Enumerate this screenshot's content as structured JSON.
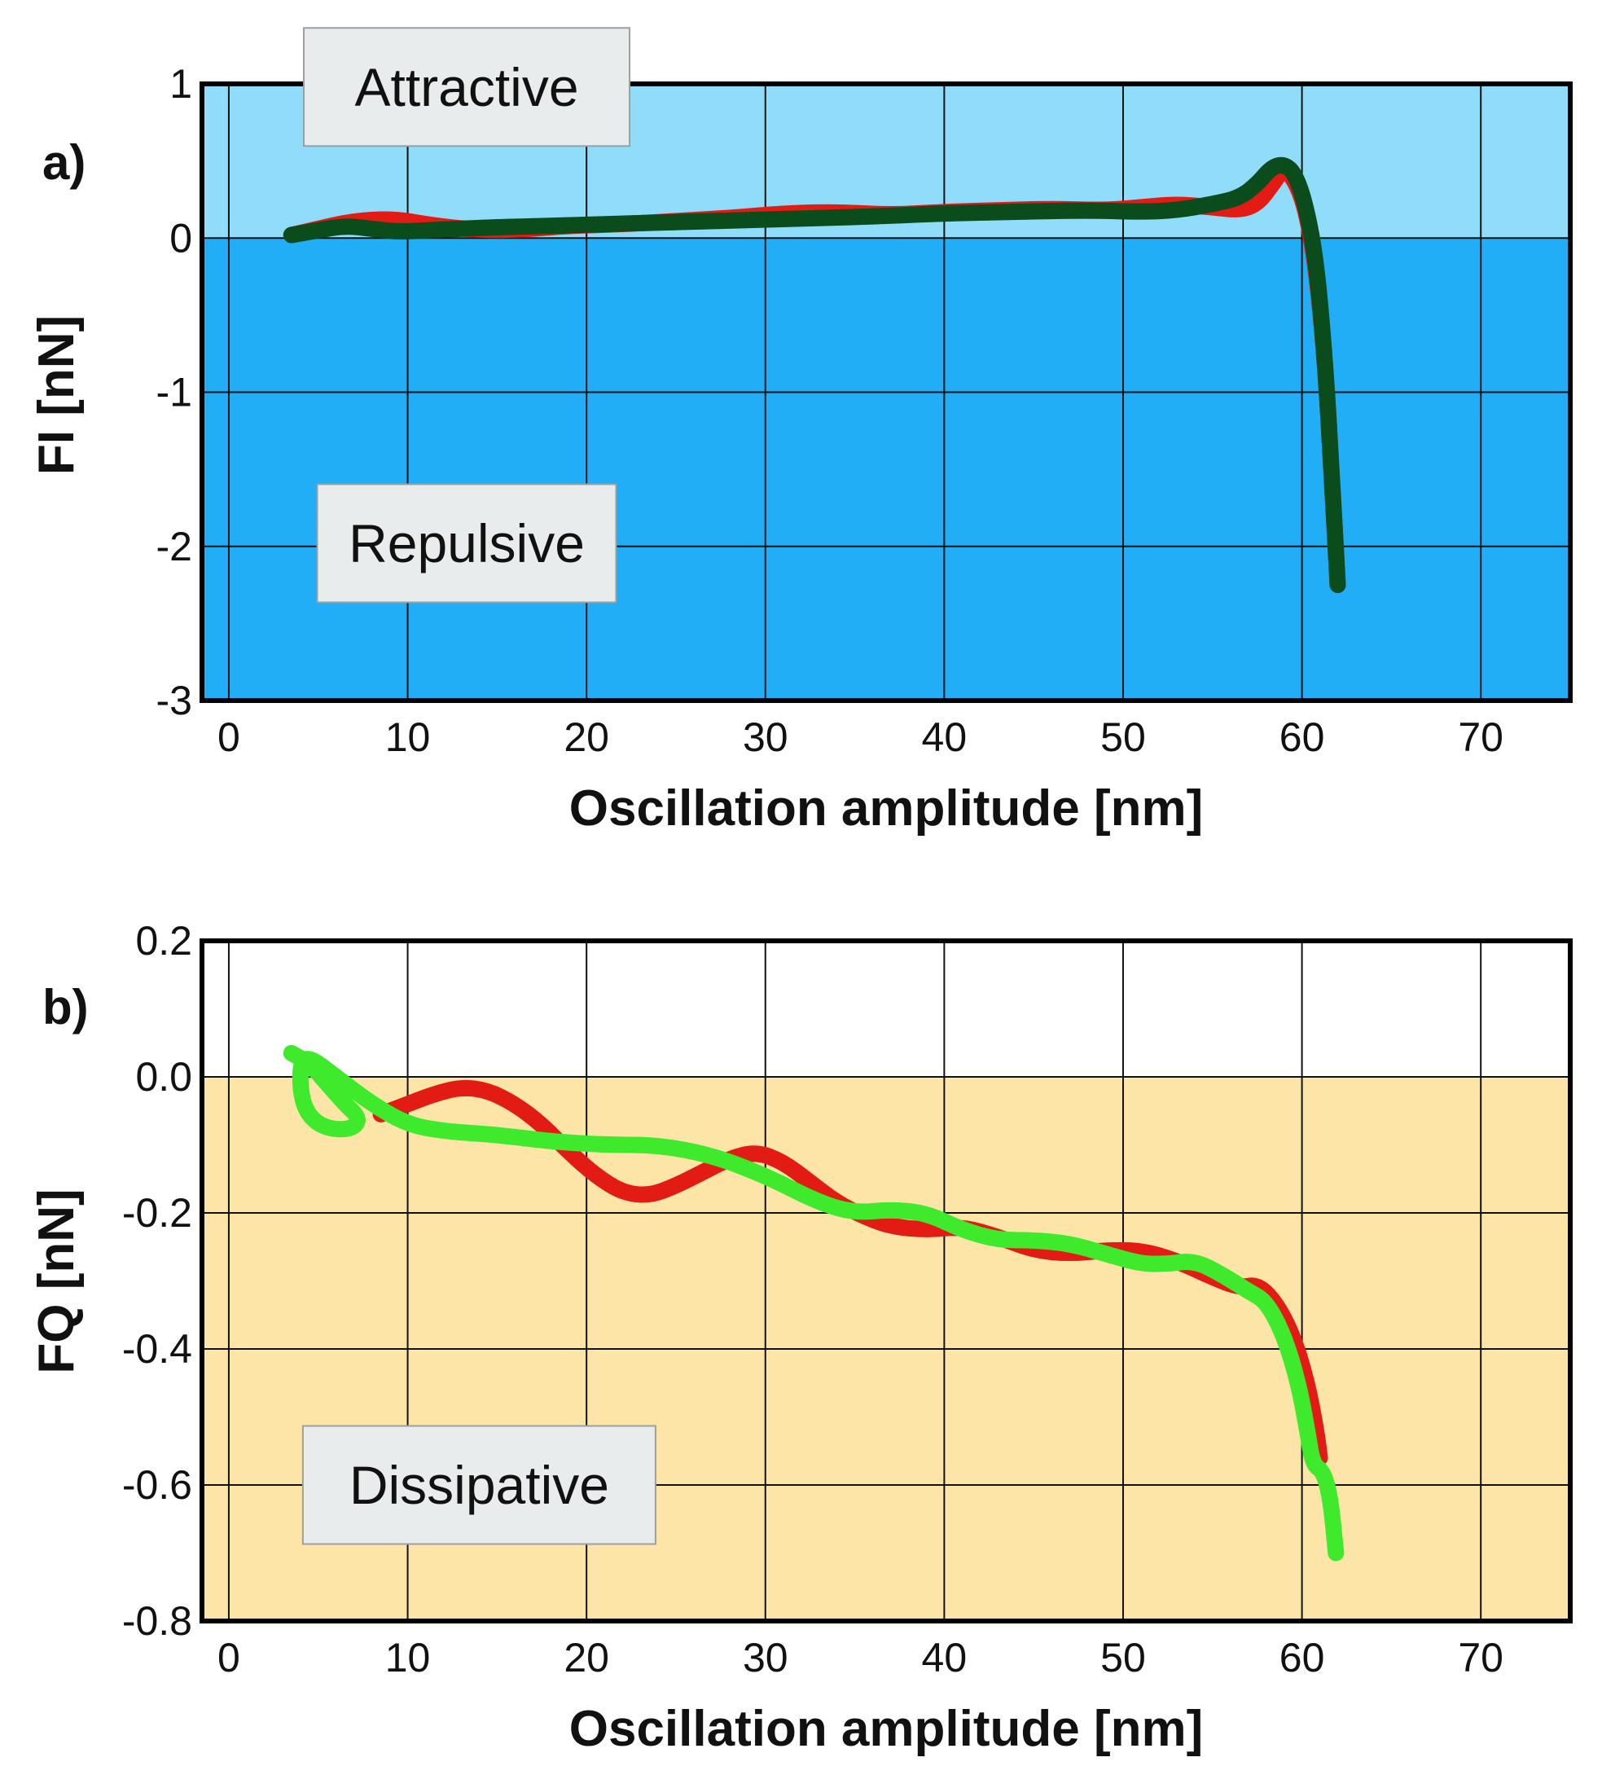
{
  "chart_data": [
    {
      "type": "line",
      "panel_label": "a)",
      "xlabel": "Oscillation amplitude [nm]",
      "ylabel": "FI [nN]",
      "xlim": [
        -1.5,
        75
      ],
      "ylim": [
        -3,
        1
      ],
      "xticks": [
        0,
        10,
        20,
        30,
        40,
        50,
        60,
        70
      ],
      "yticks": [
        1,
        0,
        -1,
        -2,
        -3
      ],
      "xtick_labels": [
        "0",
        "10",
        "20",
        "30",
        "40",
        "50",
        "60",
        "70"
      ],
      "ytick_labels": [
        "1",
        "0",
        "-1",
        "-2",
        "-3"
      ],
      "grid": true,
      "regions": [
        {
          "label": "Attractive",
          "from": 0,
          "to": 1,
          "color": "#8fdcfb"
        },
        {
          "label": "Repulsive",
          "from": -3,
          "to": 0,
          "color": "#21aef7"
        }
      ],
      "region_labels": [
        {
          "text": "Attractive",
          "x": 13.3,
          "y": 0.98
        },
        {
          "text": "Repulsive",
          "x": 13.3,
          "y": -1.98
        }
      ],
      "series": [
        {
          "name": "red",
          "color": "#e21b14",
          "points": [
            [
              3.5,
              0.02
            ],
            [
              5,
              0.06
            ],
            [
              6.5,
              0.1
            ],
            [
              8,
              0.12
            ],
            [
              9.5,
              0.12
            ],
            [
              11,
              0.09
            ],
            [
              13,
              0.06
            ],
            [
              15,
              0.05
            ],
            [
              17,
              0.06
            ],
            [
              19,
              0.08
            ],
            [
              22,
              0.09
            ],
            [
              25,
              0.11
            ],
            [
              28,
              0.13
            ],
            [
              31,
              0.16
            ],
            [
              34,
              0.17
            ],
            [
              37,
              0.15
            ],
            [
              40,
              0.17
            ],
            [
              43,
              0.18
            ],
            [
              46,
              0.19
            ],
            [
              49,
              0.18
            ],
            [
              51,
              0.2
            ],
            [
              53,
              0.22
            ],
            [
              55,
              0.2
            ],
            [
              56.5,
              0.18
            ],
            [
              57.5,
              0.22
            ],
            [
              58.3,
              0.34
            ],
            [
              58.9,
              0.44
            ],
            [
              59.5,
              0.4
            ],
            [
              60.2,
              0.2
            ],
            [
              60.8,
              -0.2
            ],
            [
              61.3,
              -0.8
            ],
            [
              61.7,
              -1.6
            ],
            [
              62,
              -2.25
            ]
          ]
        },
        {
          "name": "green",
          "color": "#0b4c1c",
          "points": [
            [
              3.5,
              0.02
            ],
            [
              5,
              0.05
            ],
            [
              6.5,
              0.08
            ],
            [
              8,
              0.06
            ],
            [
              9.5,
              0.04
            ],
            [
              11,
              0.05
            ],
            [
              13,
              0.06
            ],
            [
              15,
              0.07
            ],
            [
              18,
              0.08
            ],
            [
              21,
              0.09
            ],
            [
              24,
              0.1
            ],
            [
              27,
              0.11
            ],
            [
              30,
              0.12
            ],
            [
              33,
              0.13
            ],
            [
              36,
              0.14
            ],
            [
              40,
              0.16
            ],
            [
              44,
              0.17
            ],
            [
              48,
              0.18
            ],
            [
              51,
              0.17
            ],
            [
              53,
              0.18
            ],
            [
              55,
              0.22
            ],
            [
              56.5,
              0.26
            ],
            [
              57.5,
              0.35
            ],
            [
              58.3,
              0.46
            ],
            [
              59,
              0.48
            ],
            [
              59.6,
              0.42
            ],
            [
              60.2,
              0.22
            ],
            [
              60.8,
              -0.15
            ],
            [
              61.3,
              -0.8
            ],
            [
              61.7,
              -1.6
            ],
            [
              62,
              -2.25
            ]
          ]
        }
      ]
    },
    {
      "type": "line",
      "panel_label": "b)",
      "xlabel": "Oscillation amplitude [nm]",
      "ylabel": "FQ [nN]",
      "xlim": [
        -1.5,
        75
      ],
      "ylim": [
        -0.8,
        0.2
      ],
      "xticks": [
        0,
        10,
        20,
        30,
        40,
        50,
        60,
        70
      ],
      "yticks": [
        0.2,
        0.0,
        -0.2,
        -0.4,
        -0.6,
        -0.8
      ],
      "xtick_labels": [
        "0",
        "10",
        "20",
        "30",
        "40",
        "50",
        "60",
        "70"
      ],
      "ytick_labels": [
        "0.2",
        "0.0",
        "-0.2",
        "-0.4",
        "-0.6",
        "-0.8"
      ],
      "grid": true,
      "regions": [
        {
          "label": "",
          "from": 0,
          "to": 0.2,
          "color": "#ffffff"
        },
        {
          "label": "Dissipative",
          "from": -0.8,
          "to": 0,
          "color": "#fde5a8"
        }
      ],
      "region_labels": [
        {
          "text": "Dissipative",
          "x": 14,
          "y": -0.6
        }
      ],
      "series": [
        {
          "name": "red",
          "color": "#e21b14",
          "points": [
            [
              8.5,
              -0.055
            ],
            [
              10,
              -0.04
            ],
            [
              11.5,
              -0.025
            ],
            [
              13,
              -0.015
            ],
            [
              14.5,
              -0.02
            ],
            [
              16,
              -0.04
            ],
            [
              17.5,
              -0.07
            ],
            [
              19,
              -0.11
            ],
            [
              20.5,
              -0.145
            ],
            [
              22,
              -0.17
            ],
            [
              23.5,
              -0.175
            ],
            [
              25,
              -0.16
            ],
            [
              26.5,
              -0.14
            ],
            [
              28,
              -0.12
            ],
            [
              29.5,
              -0.11
            ],
            [
              31,
              -0.125
            ],
            [
              32.5,
              -0.155
            ],
            [
              34,
              -0.185
            ],
            [
              35.5,
              -0.205
            ],
            [
              37,
              -0.22
            ],
            [
              39,
              -0.225
            ],
            [
              41,
              -0.22
            ],
            [
              43,
              -0.235
            ],
            [
              45,
              -0.255
            ],
            [
              47,
              -0.26
            ],
            [
              49,
              -0.255
            ],
            [
              51,
              -0.255
            ],
            [
              53,
              -0.27
            ],
            [
              55,
              -0.295
            ],
            [
              56.5,
              -0.31
            ],
            [
              57.5,
              -0.305
            ],
            [
              58.5,
              -0.33
            ],
            [
              59.5,
              -0.38
            ],
            [
              60.3,
              -0.45
            ],
            [
              60.8,
              -0.52
            ],
            [
              61,
              -0.56
            ]
          ]
        },
        {
          "name": "green",
          "color": "#3fea2c",
          "points": [
            [
              3.5,
              0.035
            ],
            [
              4.5,
              0.02
            ],
            [
              5.5,
              -0.01
            ],
            [
              6.5,
              -0.04
            ],
            [
              7.3,
              -0.06
            ],
            [
              7,
              -0.075
            ],
            [
              6,
              -0.078
            ],
            [
              5,
              -0.07
            ],
            [
              4.3,
              -0.05
            ],
            [
              4,
              -0.02
            ],
            [
              4,
              0.02
            ],
            [
              4.5,
              0.03
            ],
            [
              6,
              0.0
            ],
            [
              8,
              -0.04
            ],
            [
              10,
              -0.07
            ],
            [
              12,
              -0.08
            ],
            [
              15,
              -0.085
            ],
            [
              18,
              -0.095
            ],
            [
              21,
              -0.1
            ],
            [
              24,
              -0.1
            ],
            [
              27,
              -0.115
            ],
            [
              30,
              -0.145
            ],
            [
              33,
              -0.185
            ],
            [
              35,
              -0.2
            ],
            [
              37,
              -0.195
            ],
            [
              39,
              -0.2
            ],
            [
              41,
              -0.225
            ],
            [
              43,
              -0.24
            ],
            [
              45,
              -0.24
            ],
            [
              47,
              -0.245
            ],
            [
              49,
              -0.26
            ],
            [
              51,
              -0.275
            ],
            [
              52.5,
              -0.275
            ],
            [
              54,
              -0.27
            ],
            [
              55.5,
              -0.29
            ],
            [
              57,
              -0.315
            ],
            [
              58,
              -0.33
            ],
            [
              59,
              -0.38
            ],
            [
              59.8,
              -0.45
            ],
            [
              60.3,
              -0.52
            ],
            [
              60.6,
              -0.57
            ],
            [
              61.2,
              -0.58
            ],
            [
              61.6,
              -0.62
            ],
            [
              61.9,
              -0.7
            ]
          ]
        }
      ]
    }
  ]
}
